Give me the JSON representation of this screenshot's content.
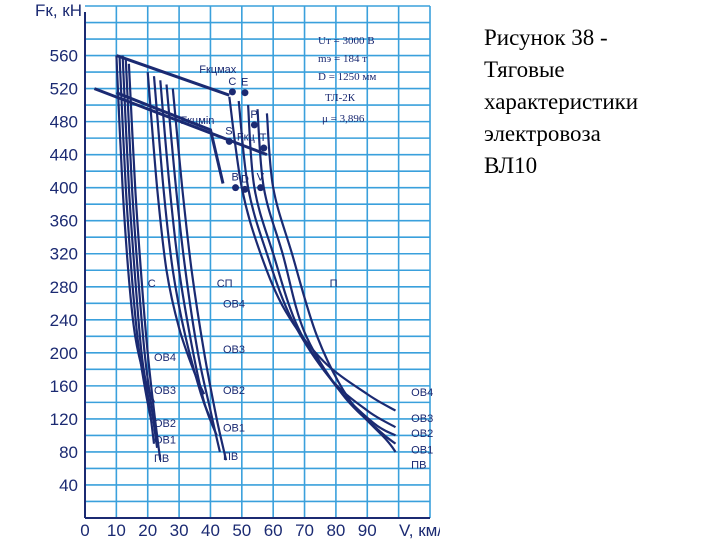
{
  "caption": {
    "lines": [
      "Рисунок 38 -",
      "Тяговые",
      "характеристики",
      "электровоза",
      "ВЛ10"
    ]
  },
  "chart_data": {
    "type": "line",
    "y_axis_label": "Fк, кН",
    "x_axis_label": "V, км/ч",
    "x_ticks": [
      0,
      10,
      20,
      30,
      40,
      50,
      60,
      70,
      80,
      90
    ],
    "y_ticks": [
      40,
      80,
      120,
      160,
      200,
      240,
      280,
      320,
      360,
      400,
      440,
      480,
      520,
      560
    ],
    "xlim": [
      0,
      110
    ],
    "ylim": [
      0,
      620
    ],
    "grid": true,
    "parameters": [
      "Uт = 3000 В",
      "mэ = 184 т",
      "D = 1250 мм",
      "ТЛ-2К",
      "μ = 3,896"
    ],
    "limit_lines": [
      {
        "label": "Fкцмах",
        "points": [
          [
            10,
            560
          ],
          [
            46,
            512
          ]
        ]
      },
      {
        "label": "Fкц",
        "points": [
          [
            3,
            520
          ],
          [
            58,
            440
          ]
        ]
      },
      {
        "label": "Fкцмin",
        "points": [
          [
            10,
            515
          ],
          [
            40,
            470
          ],
          [
            44,
            405
          ]
        ]
      }
    ],
    "point_labels": [
      {
        "label": "C",
        "x": 47,
        "y": 516
      },
      {
        "label": "E",
        "x": 51,
        "y": 515
      },
      {
        "label": "P",
        "x": 54,
        "y": 476
      },
      {
        "label": "S",
        "x": 46,
        "y": 456
      },
      {
        "label": "T",
        "x": 57,
        "y": 448
      },
      {
        "label": "B",
        "x": 48,
        "y": 400
      },
      {
        "label": "D",
        "x": 51,
        "y": 398
      },
      {
        "label": "V",
        "x": 56,
        "y": 400
      }
    ],
    "curve_groups": [
      {
        "label": "С",
        "label_pos": [
          20,
          280
        ],
        "curves": [
          [
            [
              10,
              560
            ],
            [
              12,
              400
            ],
            [
              14,
              290
            ],
            [
              16,
              220
            ],
            [
              19,
              170
            ],
            [
              22,
              140
            ]
          ],
          [
            [
              11,
              560
            ],
            [
              13,
              400
            ],
            [
              15,
              290
            ],
            [
              17,
              210
            ],
            [
              19,
              160
            ],
            [
              21,
              120
            ]
          ],
          [
            [
              12,
              560
            ],
            [
              14,
              400
            ],
            [
              16,
              290
            ],
            [
              18,
              200
            ],
            [
              20,
              150
            ],
            [
              22,
              90
            ]
          ],
          [
            [
              13,
              555
            ],
            [
              15,
              400
            ],
            [
              17,
              290
            ],
            [
              19,
              200
            ],
            [
              21,
              140
            ],
            [
              23,
              85
            ]
          ],
          [
            [
              14,
              550
            ],
            [
              16,
              400
            ],
            [
              18,
              290
            ],
            [
              20,
              200
            ],
            [
              22,
              130
            ],
            [
              24,
              70
            ]
          ]
        ]
      },
      {
        "label": "СП",
        "label_pos": [
          42,
          280
        ],
        "curves": [
          [
            [
              20,
              540
            ],
            [
              23,
              400
            ],
            [
              26,
              300
            ],
            [
              30,
              230
            ],
            [
              35,
              175
            ],
            [
              38,
              150
            ]
          ],
          [
            [
              22,
              535
            ],
            [
              25,
              400
            ],
            [
              28,
              300
            ],
            [
              32,
              220
            ],
            [
              37,
              150
            ],
            [
              40,
              120
            ]
          ],
          [
            [
              24,
              530
            ],
            [
              27,
              400
            ],
            [
              30,
              300
            ],
            [
              34,
              210
            ],
            [
              38,
              140
            ],
            [
              42,
              100
            ]
          ],
          [
            [
              26,
              525
            ],
            [
              29,
              400
            ],
            [
              32,
              300
            ],
            [
              36,
              200
            ],
            [
              40,
              130
            ],
            [
              43,
              80
            ]
          ],
          [
            [
              28,
              520
            ],
            [
              31,
              400
            ],
            [
              34,
              300
            ],
            [
              38,
              200
            ],
            [
              42,
              120
            ],
            [
              45,
              70
            ]
          ]
        ]
      },
      {
        "label": "П",
        "label_pos": [
          78,
          280
        ],
        "curves": [
          [
            [
              46,
              510
            ],
            [
              50,
              400
            ],
            [
              56,
              320
            ],
            [
              64,
              250
            ],
            [
              76,
              190
            ],
            [
              90,
              150
            ],
            [
              99,
              130
            ]
          ],
          [
            [
              49,
              505
            ],
            [
              52,
              400
            ],
            [
              58,
              320
            ],
            [
              66,
              240
            ],
            [
              78,
              170
            ],
            [
              90,
              130
            ],
            [
              99,
              110
            ]
          ],
          [
            [
              52,
              500
            ],
            [
              54,
              400
            ],
            [
              60,
              320
            ],
            [
              68,
              230
            ],
            [
              80,
              160
            ],
            [
              92,
              115
            ],
            [
              99,
              100
            ]
          ],
          [
            [
              55,
              495
            ],
            [
              57,
              400
            ],
            [
              63,
              320
            ],
            [
              70,
              225
            ],
            [
              82,
              150
            ],
            [
              94,
              105
            ],
            [
              99,
              90
            ]
          ],
          [
            [
              58,
              490
            ],
            [
              60,
              400
            ],
            [
              66,
              320
            ],
            [
              74,
              220
            ],
            [
              84,
              145
            ],
            [
              96,
              95
            ],
            [
              99,
              80
            ]
          ]
        ]
      }
    ],
    "field_labels": [
      {
        "label": "ОВ4",
        "x": 22,
        "y": 190
      },
      {
        "label": "ОВ3",
        "x": 22,
        "y": 150
      },
      {
        "label": "ОВ2",
        "x": 22,
        "y": 110
      },
      {
        "label": "ОВ1",
        "x": 22,
        "y": 90
      },
      {
        "label": "ПВ",
        "x": 22,
        "y": 68
      },
      {
        "label": "ОВ4",
        "x": 44,
        "y": 255
      },
      {
        "label": "ОВ3",
        "x": 44,
        "y": 200
      },
      {
        "label": "ОВ2",
        "x": 44,
        "y": 150
      },
      {
        "label": "ОВ1",
        "x": 44,
        "y": 105
      },
      {
        "label": "ПВ",
        "x": 44,
        "y": 70
      },
      {
        "label": "ОВ4",
        "x": 104,
        "y": 148
      },
      {
        "label": "ОВ3",
        "x": 104,
        "y": 116
      },
      {
        "label": "ОВ2",
        "x": 104,
        "y": 98
      },
      {
        "label": "ОВ1",
        "x": 104,
        "y": 78
      },
      {
        "label": "ПВ",
        "x": 104,
        "y": 60
      }
    ]
  }
}
